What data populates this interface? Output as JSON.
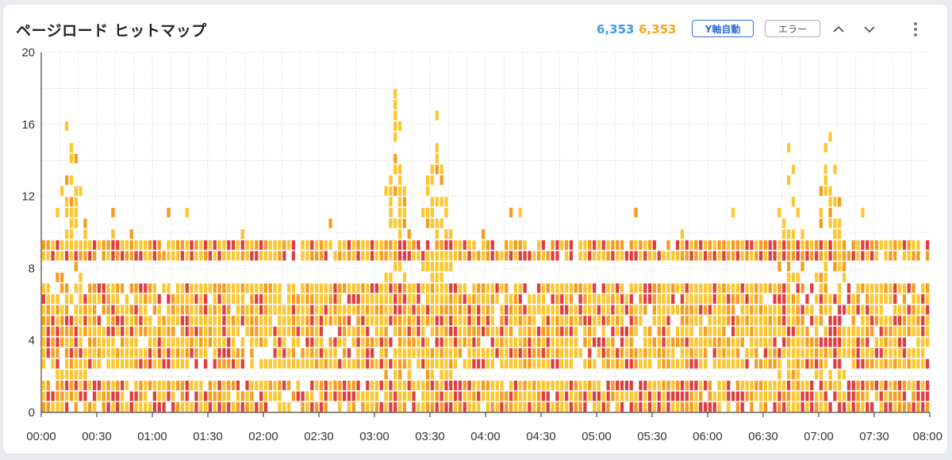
{
  "header": {
    "title": "ページロード ヒットマップ",
    "count_blue": "6,353",
    "count_orange": "6,353",
    "yaxis_button": "Y軸自動",
    "error_button": "エラー"
  },
  "icons": [
    "chevron-up-icon",
    "chevron-down-icon",
    "more-vert-icon"
  ],
  "colors": {
    "count_blue": "#3a9ee8",
    "count_orange": "#f5a623",
    "accent": "#2f6fd8",
    "cell_low": "#ffc62b",
    "cell_mid": "#f89b1c",
    "cell_high": "#e23c3c"
  },
  "chart_data": {
    "type": "heatmap",
    "x_ticks": [
      "00:00",
      "00:30",
      "01:00",
      "01:30",
      "02:00",
      "02:30",
      "03:00",
      "03:30",
      "04:00",
      "04:30",
      "05:00",
      "05:30",
      "06:00",
      "06:30",
      "07:00",
      "07:30",
      "08:00"
    ],
    "y_ticks": [
      "0",
      "4",
      "8",
      "12",
      "16",
      "20"
    ],
    "x_range_minutes": [
      0,
      480
    ],
    "ylim": [
      0,
      20
    ],
    "grid": true,
    "cell_minutes": 2.5,
    "cell_y": 0.6,
    "bands": [
      {
        "y_from": 0.0,
        "y_to": 1.3,
        "density": 0.92,
        "hot": 0.55
      },
      {
        "y_from": 2.4,
        "y_to": 6.8,
        "density": 0.9,
        "hot": 0.35
      },
      {
        "y_from": 7.8,
        "y_to": 9.4,
        "density": 0.9,
        "hot": 0.5
      }
    ],
    "spikes": [
      {
        "center_minutes": 15,
        "width_minutes": 10,
        "peak_y": 20
      },
      {
        "center_minutes": 190,
        "width_minutes": 8,
        "peak_y": 20
      },
      {
        "center_minutes": 212,
        "width_minutes": 9,
        "peak_y": 20
      },
      {
        "center_minutes": 403,
        "width_minutes": 8,
        "peak_y": 20
      },
      {
        "center_minutes": 425,
        "width_minutes": 10,
        "peak_y": 20
      }
    ]
  }
}
